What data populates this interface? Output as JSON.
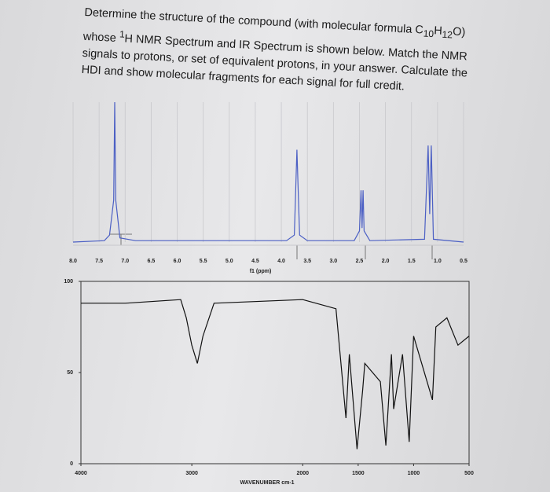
{
  "question": {
    "part1": "Determine the structure of the compound (with molecular formula C",
    "sub1": "10",
    "part2": "H",
    "sub2": "12",
    "part3": "O) whose ",
    "sup1": "1",
    "part4": "H NMR Spectrum and IR Spectrum is shown below. Match the NMR signals to protons, or set of equivalent protons, in your answer. Calculate the HDI and show molecular fragments for each signal for full credit."
  },
  "chart_data": [
    {
      "type": "line",
      "x_label": "f1 (ppm)",
      "color": "#4b5fc4",
      "grid": true,
      "x": [
        8.0,
        7.4,
        7.3,
        7.22,
        7.2,
        7.18,
        7.1,
        6.8,
        3.9,
        3.75,
        3.7,
        3.65,
        3.5,
        2.6,
        2.5,
        2.47,
        2.45,
        2.43,
        2.41,
        2.3,
        1.25,
        1.18,
        1.15,
        1.12,
        1.08,
        0.5
      ],
      "values": [
        0,
        0.01,
        0.05,
        0.3,
        1.0,
        0.3,
        0.03,
        0.01,
        0.01,
        0.05,
        0.66,
        0.05,
        0.01,
        0.01,
        0.08,
        0.37,
        0.1,
        0.37,
        0.08,
        0.01,
        0.02,
        0.69,
        0.2,
        0.69,
        0.02,
        0
      ],
      "xlim": [
        8.0,
        0.5
      ],
      "ylim": [
        0,
        1
      ],
      "xticks": [
        {
          "value": 8.0,
          "label": "8.0"
        },
        7.5,
        {
          "value": 7.0,
          "label": "7.0"
        },
        6.5,
        {
          "value": 6.0,
          "label": "6.0"
        },
        5.5,
        {
          "value": 5.0,
          "label": "5.0"
        },
        4.5,
        {
          "value": 4.0,
          "label": "4.0"
        },
        3.5,
        {
          "value": 3.0,
          "label": "3.0"
        },
        2.5,
        {
          "value": 2.0,
          "label": "2.0"
        },
        1.5,
        {
          "value": 1.0,
          "label": "1.0"
        },
        0.5
      ]
    },
    {
      "type": "line",
      "x_label": "WAVENUMBER cm-1",
      "color": "#111111",
      "grid": false,
      "x": [
        4000,
        3600,
        3100,
        3050,
        3000,
        2950,
        2900,
        2800,
        2000,
        1700,
        1610,
        1580,
        1510,
        1460,
        1440,
        1300,
        1250,
        1200,
        1180,
        1100,
        1040,
        1000,
        830,
        800,
        700,
        600,
        500
      ],
      "values": [
        88,
        88,
        90,
        80,
        65,
        55,
        70,
        88,
        90,
        85,
        25,
        60,
        8,
        40,
        55,
        45,
        10,
        60,
        30,
        60,
        12,
        70,
        35,
        75,
        80,
        65,
        70
      ],
      "xlim": [
        4000,
        500
      ],
      "ylim": [
        0,
        100
      ],
      "xticks": [
        4000,
        3000,
        2000,
        1500,
        1000,
        500
      ],
      "yticks": [
        0,
        50,
        100
      ]
    }
  ]
}
